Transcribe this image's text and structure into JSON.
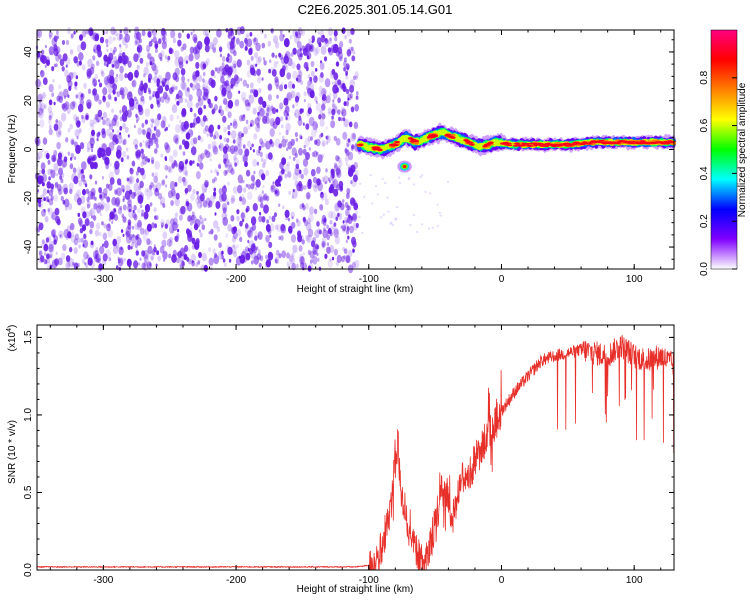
{
  "title": "C2E6.2025.301.05.14.G01",
  "colors": {
    "snr_line": "#e8302b",
    "noise": "#6a1ee6",
    "axis": "#000000",
    "background": "#ffffff"
  },
  "chart_data": [
    {
      "type": "heatmap",
      "name": "spectrogram",
      "xlabel": "Height of straight line (km)",
      "ylabel": "Frequency (Hz)",
      "xlim": [
        -350,
        130
      ],
      "ylim": [
        -49,
        49
      ],
      "x_ticks": [
        -300,
        -200,
        -100,
        0,
        100
      ],
      "x_tick_labels": [
        "-300",
        "-200",
        "-100",
        "0",
        "100"
      ],
      "y_ticks": [
        -40,
        -20,
        0,
        20,
        40
      ],
      "y_tick_labels": [
        "-40",
        "-20",
        "0",
        "20",
        "40"
      ],
      "noise_region_x": [
        -350,
        -107
      ],
      "signal_start_x": -107,
      "signal_trace": [
        {
          "x": -107,
          "freq": 2
        },
        {
          "x": -100,
          "freq": 1
        },
        {
          "x": -90,
          "freq": 0
        },
        {
          "x": -80,
          "freq": 2
        },
        {
          "x": -72,
          "freq": 5
        },
        {
          "x": -65,
          "freq": 3
        },
        {
          "x": -55,
          "freq": 5
        },
        {
          "x": -45,
          "freq": 7
        },
        {
          "x": -35,
          "freq": 5
        },
        {
          "x": -25,
          "freq": 3
        },
        {
          "x": -15,
          "freq": 1
        },
        {
          "x": -5,
          "freq": 3
        },
        {
          "x": 10,
          "freq": 2
        },
        {
          "x": 30,
          "freq": 2
        },
        {
          "x": 50,
          "freq": 2
        },
        {
          "x": 70,
          "freq": 3
        },
        {
          "x": 90,
          "freq": 3
        },
        {
          "x": 110,
          "freq": 3
        },
        {
          "x": 130,
          "freq": 3
        }
      ],
      "isolated_spot": {
        "x": -73,
        "freq": -7
      },
      "colorbar": {
        "label": "Normalized spectral amplitude",
        "range": [
          0,
          1
        ],
        "ticks": [
          0.0,
          0.2,
          0.4,
          0.6,
          0.8
        ],
        "tick_labels": [
          "0.0",
          "0.2",
          "0.4",
          "0.6",
          "0.8"
        ],
        "colormap": [
          "#ffffff",
          "#8000ff",
          "#0000ff",
          "#00ffff",
          "#00ff00",
          "#ffff00",
          "#ff8000",
          "#ff0000",
          "#ff0080"
        ]
      }
    },
    {
      "type": "line",
      "name": "snr",
      "xlabel": "Height of straight line (km)",
      "ylabel": "SNR (10 * v/v)",
      "scale_label_prefix": "(x10",
      "scale_label_exp": "4",
      "scale_label_suffix": ")",
      "xlim": [
        -350,
        130
      ],
      "ylim": [
        0,
        1.58
      ],
      "x_ticks": [
        -300,
        -200,
        -100,
        0,
        100
      ],
      "x_tick_labels": [
        "-300",
        "-200",
        "-100",
        "0",
        "100"
      ],
      "y_ticks": [
        0.0,
        0.5,
        1.0,
        1.5
      ],
      "y_tick_labels": [
        "0.0",
        "0.5",
        "1.0",
        "1.5"
      ],
      "series": [
        {
          "name": "SNR",
          "points": [
            [
              -350,
              0.02
            ],
            [
              -300,
              0.02
            ],
            [
              -250,
              0.02
            ],
            [
              -200,
              0.02
            ],
            [
              -150,
              0.02
            ],
            [
              -110,
              0.02
            ],
            [
              -100,
              0.03
            ],
            [
              -95,
              0.06
            ],
            [
              -90,
              0.12
            ],
            [
              -85,
              0.3
            ],
            [
              -82,
              0.55
            ],
            [
              -78,
              0.8
            ],
            [
              -75,
              0.45
            ],
            [
              -70,
              0.3
            ],
            [
              -66,
              0.2
            ],
            [
              -62,
              0.08
            ],
            [
              -58,
              0.05
            ],
            [
              -54,
              0.15
            ],
            [
              -50,
              0.3
            ],
            [
              -46,
              0.5
            ],
            [
              -42,
              0.55
            ],
            [
              -38,
              0.35
            ],
            [
              -34,
              0.45
            ],
            [
              -30,
              0.6
            ],
            [
              -26,
              0.55
            ],
            [
              -22,
              0.65
            ],
            [
              -18,
              0.75
            ],
            [
              -14,
              0.8
            ],
            [
              -10,
              0.9
            ],
            [
              -6,
              0.95
            ],
            [
              -2,
              1.0
            ],
            [
              2,
              1.05
            ],
            [
              6,
              1.1
            ],
            [
              10,
              1.15
            ],
            [
              15,
              1.2
            ],
            [
              20,
              1.25
            ],
            [
              25,
              1.3
            ],
            [
              30,
              1.35
            ],
            [
              40,
              1.38
            ],
            [
              50,
              1.4
            ],
            [
              60,
              1.42
            ],
            [
              70,
              1.4
            ],
            [
              80,
              1.38
            ],
            [
              90,
              1.45
            ],
            [
              100,
              1.38
            ],
            [
              110,
              1.35
            ],
            [
              120,
              1.38
            ],
            [
              130,
              1.32
            ]
          ]
        }
      ]
    }
  ]
}
